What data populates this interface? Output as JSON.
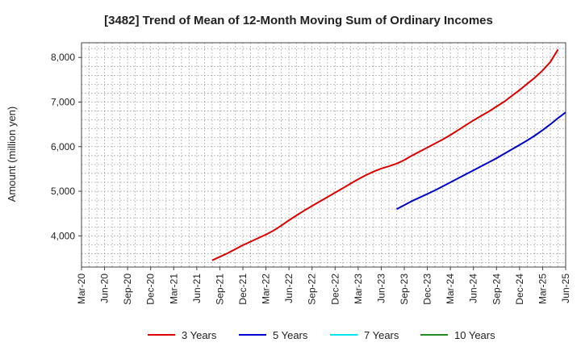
{
  "chart_data": {
    "type": "line",
    "title": "[3482]  Trend of Mean of 12-Month Moving Sum of Ordinary Incomes",
    "ylabel": "Amount (million yen)",
    "xlabel": "",
    "y_ticks": [
      "4,000",
      "5,000",
      "6,000",
      "7,000",
      "8,000"
    ],
    "y_tick_values": [
      4000,
      5000,
      6000,
      7000,
      8000
    ],
    "ylim": [
      3300,
      8330
    ],
    "x_tick_labels": [
      "Mar-20",
      "Jun-20",
      "Sep-20",
      "Dec-20",
      "Mar-21",
      "Jun-21",
      "Sep-21",
      "Dec-21",
      "Mar-22",
      "Jun-22",
      "Sep-22",
      "Dec-22",
      "Mar-23",
      "Jun-23",
      "Sep-23",
      "Dec-23",
      "Mar-24",
      "Jun-24",
      "Sep-24",
      "Dec-24",
      "Mar-25",
      "Jun-25"
    ],
    "grid": true,
    "legend_position": "bottom",
    "series": [
      {
        "name": "3 Years",
        "color": "#dd0000",
        "start_month": "Aug-21",
        "values": [
          3450,
          3530,
          3610,
          3700,
          3790,
          3870,
          3950,
          4030,
          4120,
          4230,
          4350,
          4460,
          4570,
          4670,
          4770,
          4870,
          4970,
          5070,
          5170,
          5270,
          5360,
          5440,
          5510,
          5560,
          5620,
          5700,
          5800,
          5890,
          5980,
          6070,
          6160,
          6260,
          6370,
          6480,
          6590,
          6690,
          6790,
          6900,
          7010,
          7140,
          7270,
          7410,
          7550,
          7710,
          7900,
          8180
        ]
      },
      {
        "name": "5 Years",
        "color": "#0000cc",
        "start_month": "Aug-23",
        "values": [
          4600,
          4690,
          4780,
          4860,
          4940,
          5020,
          5110,
          5200,
          5290,
          5380,
          5470,
          5560,
          5650,
          5740,
          5840,
          5940,
          6040,
          6140,
          6250,
          6370,
          6500,
          6640,
          6770
        ]
      },
      {
        "name": "7 Years",
        "color": "#00e5ee",
        "start_month": "",
        "values": []
      },
      {
        "name": "10 Years",
        "color": "#228b22",
        "start_month": "",
        "values": []
      }
    ]
  }
}
